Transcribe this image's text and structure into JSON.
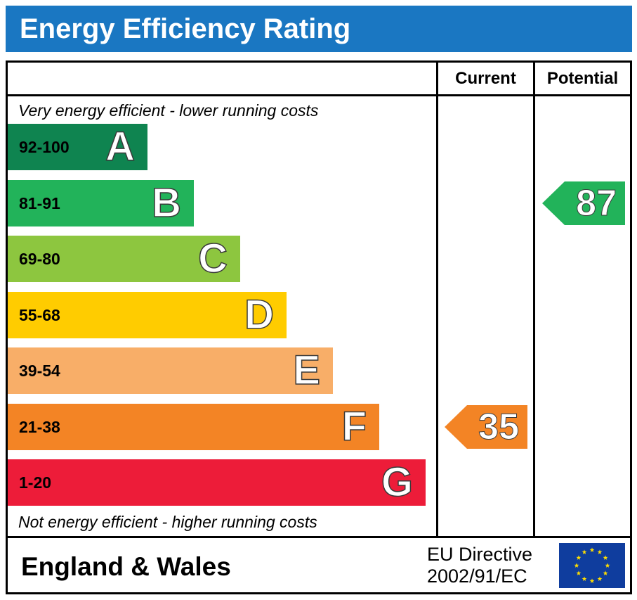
{
  "title": "Energy Efficiency Rating",
  "columns": {
    "current": "Current",
    "potential": "Potential"
  },
  "notes": {
    "top": "Very energy efficient - lower running costs",
    "bottom": "Not energy efficient - higher running costs"
  },
  "chart_data": {
    "type": "bar",
    "title": "Energy Efficiency Rating",
    "categories": [
      "A",
      "B",
      "C",
      "D",
      "E",
      "F",
      "G"
    ],
    "bands": [
      {
        "letter": "A",
        "range": "92-100",
        "color": "#0f8450",
        "text_color": "#000000"
      },
      {
        "letter": "B",
        "range": "81-91",
        "color": "#22b35a",
        "text_color": "#000000"
      },
      {
        "letter": "C",
        "range": "69-80",
        "color": "#8dc63f",
        "text_color": "#000000"
      },
      {
        "letter": "D",
        "range": "55-68",
        "color": "#ffcc00",
        "text_color": "#000000"
      },
      {
        "letter": "E",
        "range": "39-54",
        "color": "#f8ae68",
        "text_color": "#000000"
      },
      {
        "letter": "F",
        "range": "21-38",
        "color": "#f38425",
        "text_color": "#000000"
      },
      {
        "letter": "G",
        "range": "1-20",
        "color": "#ed1c39",
        "text_color": "#000000"
      }
    ],
    "current": {
      "value": "35",
      "band": "F",
      "color": "#f38425"
    },
    "potential": {
      "value": "87",
      "band": "B",
      "color": "#22b35a"
    }
  },
  "footer": {
    "region": "England & Wales",
    "directive_line1": "EU Directive",
    "directive_line2": "2002/91/EC",
    "flag_icon": "eu-flag-icon",
    "flag_color": "#0f3d9e",
    "star_color": "#ffde00"
  }
}
